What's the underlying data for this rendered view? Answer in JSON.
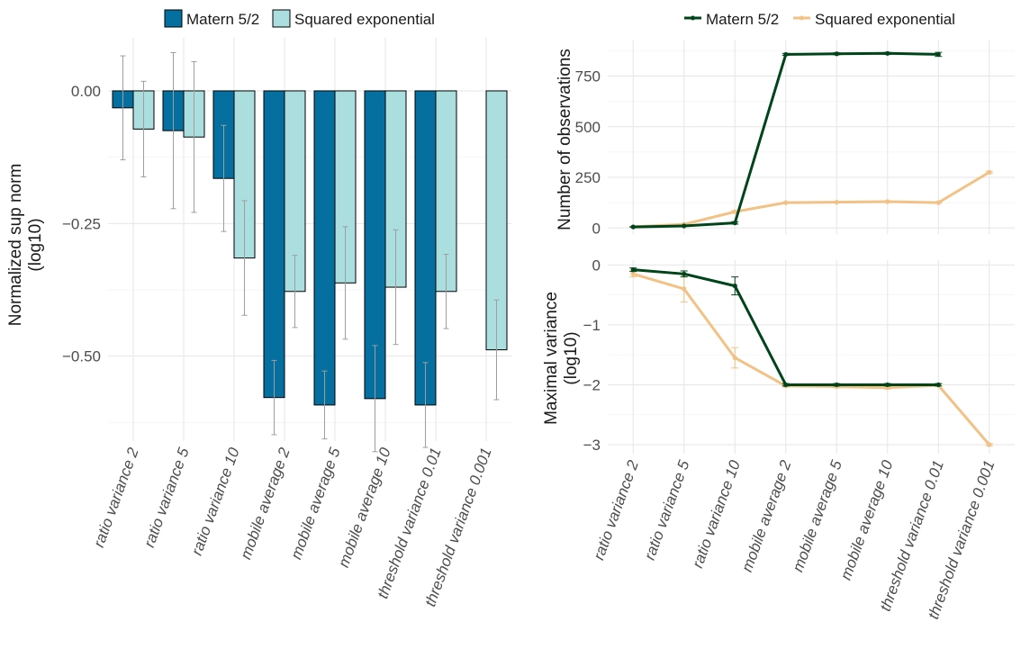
{
  "palette": {
    "matern_bar": "#0570a0",
    "sqexp_bar": "#aadedf",
    "matern_line": "#00441b",
    "sqexp_line": "#f2c185",
    "errorbar": "#9e9e9e"
  },
  "chart_data": [
    {
      "type": "bar",
      "legend": {
        "position": "top",
        "entries": [
          "Matern 5/2",
          "Squared exponential"
        ]
      },
      "categories": [
        "ratio variance 2",
        "ratio variance 5",
        "ratio variance 10",
        "mobile average 2",
        "mobile average 5",
        "mobile average 10",
        "threshold variance 0.01",
        "threshold variance 0.001"
      ],
      "ylabel": [
        "Normalized sup norm",
        "(log10)"
      ],
      "ylim": [
        -0.66,
        0.1
      ],
      "yticks": [
        0.0,
        -0.25,
        -0.5
      ],
      "ytick_labels": [
        "0.00",
        "−0.25",
        "−0.50"
      ],
      "grid": true,
      "series": [
        {
          "name": "Matern 5/2",
          "values": [
            -0.032,
            -0.075,
            -0.165,
            -0.578,
            -0.592,
            -0.58,
            -0.592,
            null
          ],
          "error": [
            0.098,
            0.147,
            0.1,
            0.07,
            0.064,
            0.1,
            0.08,
            null
          ]
        },
        {
          "name": "Squared exponential",
          "values": [
            -0.072,
            -0.087,
            -0.315,
            -0.378,
            -0.362,
            -0.37,
            -0.378,
            -0.488
          ],
          "error": [
            0.09,
            0.142,
            0.108,
            0.068,
            0.106,
            0.108,
            0.07,
            0.094
          ]
        }
      ]
    },
    {
      "type": "line",
      "legend": {
        "position": "top",
        "entries": [
          "Matern 5/2",
          "Squared exponential"
        ]
      },
      "categories": [
        "ratio variance 2",
        "ratio variance 5",
        "ratio variance 10",
        "mobile average 2",
        "mobile average 5",
        "mobile average 10",
        "threshold variance 0.01",
        "threshold variance 0.001"
      ],
      "ylabel": "Number of observations",
      "ylim": [
        -30,
        930
      ],
      "yticks": [
        0,
        250,
        500,
        750
      ],
      "ytick_labels": [
        "0",
        "250",
        "500",
        "750"
      ],
      "grid": true,
      "series": [
        {
          "name": "Matern 5/2",
          "values": [
            5,
            10,
            25,
            857,
            860,
            862,
            857,
            null
          ],
          "error": [
            1,
            2,
            6,
            5,
            5,
            5,
            10,
            null
          ]
        },
        {
          "name": "Squared exponential",
          "values": [
            6,
            18,
            80,
            125,
            127,
            130,
            125,
            275
          ],
          "error": [
            1,
            2,
            5,
            3,
            3,
            3,
            3,
            5
          ]
        }
      ]
    },
    {
      "type": "line",
      "categories": [
        "ratio variance 2",
        "ratio variance 5",
        "ratio variance 10",
        "mobile average 2",
        "mobile average 5",
        "mobile average 10",
        "threshold variance 0.01",
        "threshold variance 0.001"
      ],
      "ylabel": [
        "Maximal variance",
        "(log10)"
      ],
      "ylim": [
        -3.15,
        0.08
      ],
      "yticks": [
        0,
        -1,
        -2,
        -3
      ],
      "ytick_labels": [
        "0",
        "−1",
        "−2",
        "−3"
      ],
      "grid": true,
      "series": [
        {
          "name": "Matern 5/2",
          "values": [
            -0.08,
            -0.15,
            -0.35,
            -2.0,
            -2.0,
            -2.0,
            -2.0,
            null
          ],
          "error": [
            0.03,
            0.05,
            0.15,
            0.02,
            0.02,
            0.02,
            0.02,
            null
          ]
        },
        {
          "name": "Squared exponential",
          "values": [
            -0.15,
            -0.4,
            -1.55,
            -2.02,
            -2.03,
            -2.05,
            -2.01,
            -3.0
          ],
          "error": [
            0.05,
            0.22,
            0.17,
            0.02,
            0.02,
            0.02,
            0.02,
            0.02
          ]
        }
      ]
    }
  ]
}
